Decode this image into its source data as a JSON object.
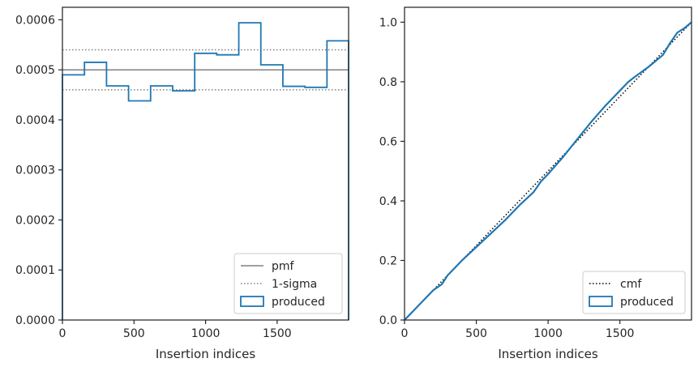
{
  "chart_data": [
    {
      "type": "line",
      "xlabel": "Insertion indices",
      "ylabel": "",
      "xlim": [
        0,
        1999
      ],
      "ylim": [
        0,
        0.000625
      ],
      "xticks": [
        0,
        500,
        1000,
        1500
      ],
      "yticks": [
        0,
        0.0001,
        0.0002,
        0.0003,
        0.0004,
        0.0005,
        0.0006
      ],
      "ytick_labels": [
        "0.0000",
        "0.0001",
        "0.0002",
        "0.0003",
        "0.0004",
        "0.0005",
        "0.0006"
      ],
      "grid": false,
      "legend_position": "lower-right",
      "series": [
        {
          "name": "pmf",
          "style": "solid",
          "color": "#808080",
          "y": 0.0005
        },
        {
          "name": "1-sigma",
          "style": "dotted",
          "color": "#808080",
          "y": [
            0.00046,
            0.00054
          ]
        },
        {
          "name": "produced",
          "style": "step",
          "color": "#1f77b4",
          "bin_edges": [
            0,
            154,
            308,
            462,
            616,
            770,
            924,
            1078,
            1232,
            1386,
            1540,
            1694,
            1848,
            1999
          ],
          "values": [
            0.00049,
            0.000515,
            0.000468,
            0.000438,
            0.000468,
            0.000458,
            0.000533,
            0.00053,
            0.000594,
            0.00051,
            0.000467,
            0.000465,
            0.000558
          ]
        }
      ]
    },
    {
      "type": "line",
      "xlabel": "Insertion indices",
      "ylabel": "",
      "xlim": [
        0,
        1999
      ],
      "ylim": [
        0,
        1.05
      ],
      "xticks": [
        0,
        500,
        1000,
        1500
      ],
      "yticks": [
        0.0,
        0.2,
        0.4,
        0.6,
        0.8,
        1.0
      ],
      "ytick_labels": [
        "0.0",
        "0.2",
        "0.4",
        "0.6",
        "0.8",
        "1.0"
      ],
      "grid": false,
      "legend_position": "lower-right",
      "series": [
        {
          "name": "cmf",
          "style": "dotted",
          "color": "#000000",
          "x": [
            0,
            1999
          ],
          "y": [
            0,
            1.0
          ]
        },
        {
          "name": "produced",
          "style": "line",
          "color": "#1f77b4",
          "x": [
            0,
            100,
            200,
            260,
            300,
            400,
            500,
            600,
            700,
            800,
            900,
            950,
            1000,
            1100,
            1200,
            1300,
            1400,
            1500,
            1560,
            1600,
            1700,
            1800,
            1850,
            1900,
            1950,
            1999
          ],
          "y": [
            0,
            0.05,
            0.1,
            0.12,
            0.15,
            0.2,
            0.245,
            0.29,
            0.335,
            0.385,
            0.43,
            0.465,
            0.49,
            0.545,
            0.605,
            0.665,
            0.72,
            0.77,
            0.8,
            0.815,
            0.85,
            0.89,
            0.93,
            0.965,
            0.98,
            1.0
          ]
        }
      ]
    }
  ]
}
